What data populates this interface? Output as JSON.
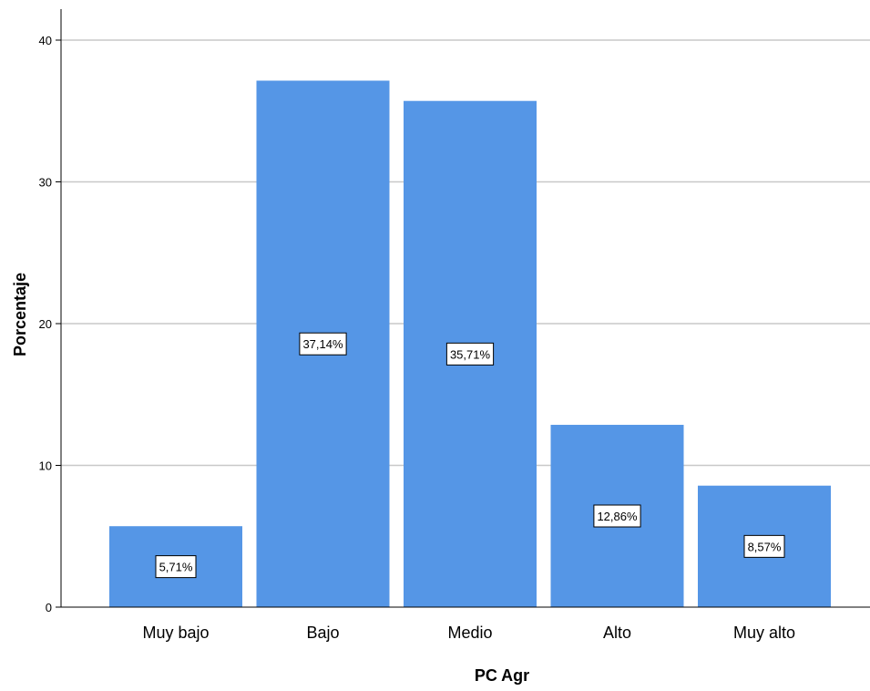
{
  "chart_data": {
    "type": "bar",
    "categories": [
      "Muy bajo",
      "Bajo",
      "Medio",
      "Alto",
      "Muy alto"
    ],
    "values": [
      5.71,
      37.14,
      35.71,
      12.86,
      8.57
    ],
    "data_labels": [
      "5,71%",
      "37,14%",
      "35,71%",
      "12,86%",
      "8,57%"
    ],
    "xlabel": "PC Agr",
    "ylabel": "Porcentaje",
    "ylim": [
      0,
      40
    ],
    "yticks": [
      "0",
      "10",
      "20",
      "30",
      "40"
    ],
    "grid": true,
    "colors": {
      "bar": "#5596e6",
      "grid": "#c8c8c8",
      "axis": "#000000"
    }
  }
}
